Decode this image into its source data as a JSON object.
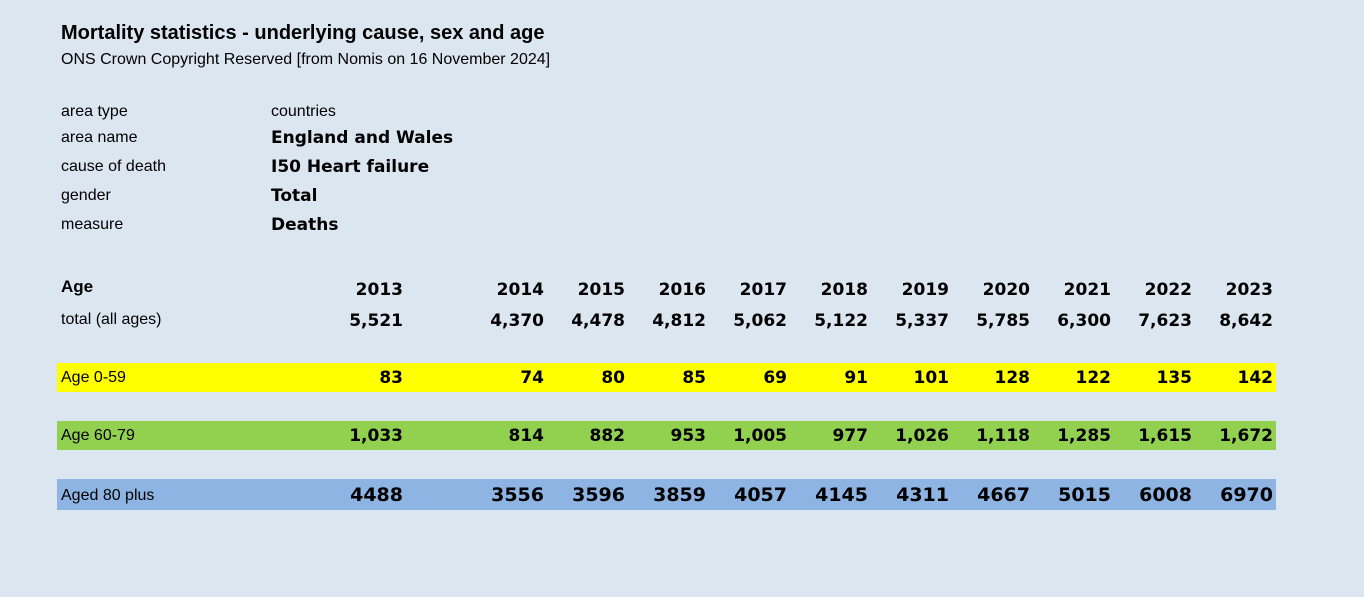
{
  "title": "Mortality statistics - underlying cause, sex and age",
  "subtitle": "ONS Crown Copyright Reserved [from Nomis on 16 November 2024]",
  "meta": [
    {
      "label": "area type",
      "value": "countries",
      "bold": false
    },
    {
      "label": "area name",
      "value": "England and Wales",
      "bold": true
    },
    {
      "label": "cause of death",
      "value": "I50 Heart failure",
      "bold": true
    },
    {
      "label": "gender",
      "value": "Total",
      "bold": true
    },
    {
      "label": "measure",
      "value": "Deaths",
      "bold": true
    }
  ],
  "table": {
    "header_label": "Age",
    "years": [
      "2013",
      "2014",
      "2015",
      "2016",
      "2017",
      "2018",
      "2019",
      "2020",
      "2021",
      "2022",
      "2023"
    ],
    "rows": [
      {
        "label": "total (all ages)",
        "values": [
          "5,521",
          "4,370",
          "4,478",
          "4,812",
          "5,062",
          "5,122",
          "5,337",
          "5,785",
          "6,300",
          "7,623",
          "8,642"
        ],
        "band": "none"
      },
      {
        "label": "Age 0-59",
        "values": [
          "83",
          "74",
          "80",
          "85",
          "69",
          "91",
          "101",
          "128",
          "122",
          "135",
          "142"
        ],
        "band": "yellow"
      },
      {
        "label": "Age 60-79",
        "values": [
          "1,033",
          "814",
          "882",
          "953",
          "1,005",
          "977",
          "1,026",
          "1,118",
          "1,285",
          "1,615",
          "1,672"
        ],
        "band": "green"
      },
      {
        "label": "Aged 80 plus",
        "values": [
          "4488",
          "3556",
          "3596",
          "3859",
          "4057",
          "4145",
          "4311",
          "4667",
          "5015",
          "6008",
          "6970"
        ],
        "band": "blue"
      }
    ]
  },
  "colors": {
    "background": "#dce6f1",
    "yellow_band": "#ffff00",
    "green_band": "#92d050",
    "blue_band": "#8db4e2"
  }
}
